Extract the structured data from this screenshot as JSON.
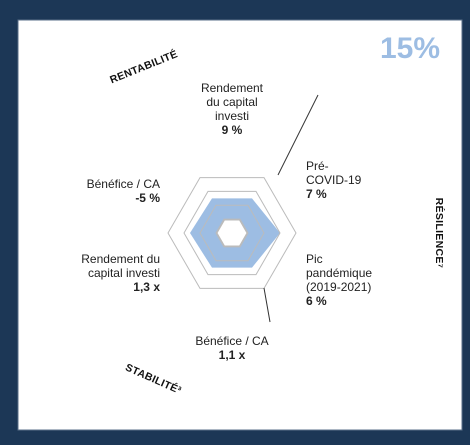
{
  "score": "15%",
  "pillars": {
    "profitability": "RENTABILITÉ",
    "resilience": "RÉSILIENCE⁷",
    "stability": "STABILITÉ³"
  },
  "metrics": [
    {
      "label": [
        "Rendement",
        "du capital",
        "investi"
      ],
      "value": "9 %"
    },
    {
      "label": [
        "Pré-",
        "COVID-19"
      ],
      "value": "7 %"
    },
    {
      "label": [
        "Pic",
        "pandémique",
        "(2019-2021)"
      ],
      "value": "6 %"
    },
    {
      "label": [
        "Bénéfice / CA"
      ],
      "value": "1,1 x"
    },
    {
      "label": [
        "Rendement du",
        "capital investi"
      ],
      "value": "1,3 x"
    },
    {
      "label": [
        "Bénéfice / CA"
      ],
      "value": "-5 %"
    }
  ]
}
